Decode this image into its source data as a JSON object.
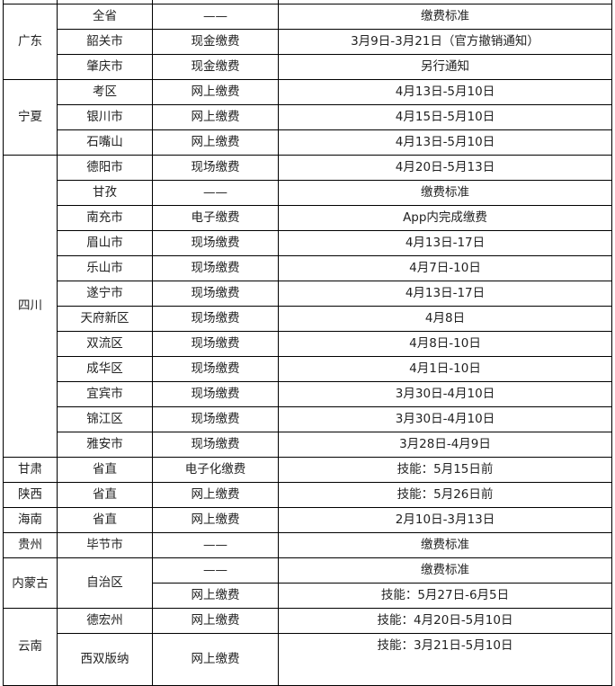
{
  "table": {
    "groups": [
      {
        "province": "",
        "rows": [
          {
            "city": "",
            "method": "",
            "time": ""
          }
        ]
      },
      {
        "province": "广东",
        "rows": [
          {
            "city": "全省",
            "method": "——",
            "time": "缴费标准"
          },
          {
            "city": "韶关市",
            "method": "现金缴费",
            "time": "3月9日-3月21日（官方撤销通知）"
          },
          {
            "city": "肇庆市",
            "method": "现金缴费",
            "time": "另行通知"
          }
        ]
      },
      {
        "province": "宁夏",
        "rows": [
          {
            "city": "考区",
            "method": "网上缴费",
            "time": "4月13日-5月10日"
          },
          {
            "city": "银川市",
            "method": "网上缴费",
            "time": "4月15日-5月10日"
          },
          {
            "city": "石嘴山",
            "method": "网上缴费",
            "time": "4月13日-5月10日"
          }
        ]
      },
      {
        "province": "四川",
        "rows": [
          {
            "city": "德阳市",
            "method": "现场缴费",
            "time": "4月20日-5月13日"
          },
          {
            "city": "甘孜",
            "method": "——",
            "time": "缴费标准"
          },
          {
            "city": "南充市",
            "method": "电子缴费",
            "time": "App内完成缴费"
          },
          {
            "city": "眉山市",
            "method": "现场缴费",
            "time": "4月13日-17日"
          },
          {
            "city": "乐山市",
            "method": "现场缴费",
            "time": "4月7日-10日"
          },
          {
            "city": "遂宁市",
            "method": "现场缴费",
            "time": "4月13日-17日"
          },
          {
            "city": "天府新区",
            "method": "现场缴费",
            "time": "4月8日"
          },
          {
            "city": "双流区",
            "method": "现场缴费",
            "time": "4月8日-10日"
          },
          {
            "city": "成华区",
            "method": "现场缴费",
            "time": "4月1日-10日"
          },
          {
            "city": "宜宾市",
            "method": "现场缴费",
            "time": "3月30日-4月10日"
          },
          {
            "city": "锦江区",
            "method": "现场缴费",
            "time": "3月30日-4月10日"
          },
          {
            "city": "雅安市",
            "method": "现场缴费",
            "time": "3月28日-4月9日"
          }
        ]
      },
      {
        "province": "甘肃",
        "rows": [
          {
            "city": "省直",
            "method": "电子化缴费",
            "time": "技能：5月15日前"
          }
        ]
      },
      {
        "province": "陕西",
        "rows": [
          {
            "city": "省直",
            "method": "网上缴费",
            "time": "技能：5月26日前"
          }
        ]
      },
      {
        "province": "海南",
        "rows": [
          {
            "city": "省直",
            "method": "网上缴费",
            "time": "2月10日-3月13日"
          }
        ]
      },
      {
        "province": "贵州",
        "rows": [
          {
            "city": "毕节市",
            "method": "——",
            "time": "缴费标准"
          }
        ]
      },
      {
        "province": "内蒙古",
        "city_merged": "自治区",
        "rows": [
          {
            "method": "——",
            "time": "缴费标准"
          },
          {
            "method": "网上缴费",
            "time": "技能：5月27日-6月5日"
          }
        ]
      },
      {
        "province": "云南",
        "rows": [
          {
            "city": "德宏州",
            "method": "网上缴费",
            "time": "技能：4月20日-5月10日"
          },
          {
            "city": "西双版纳",
            "method": "网上缴费",
            "time": "技能：3月21日-5月10日",
            "tall": true
          }
        ]
      }
    ]
  }
}
